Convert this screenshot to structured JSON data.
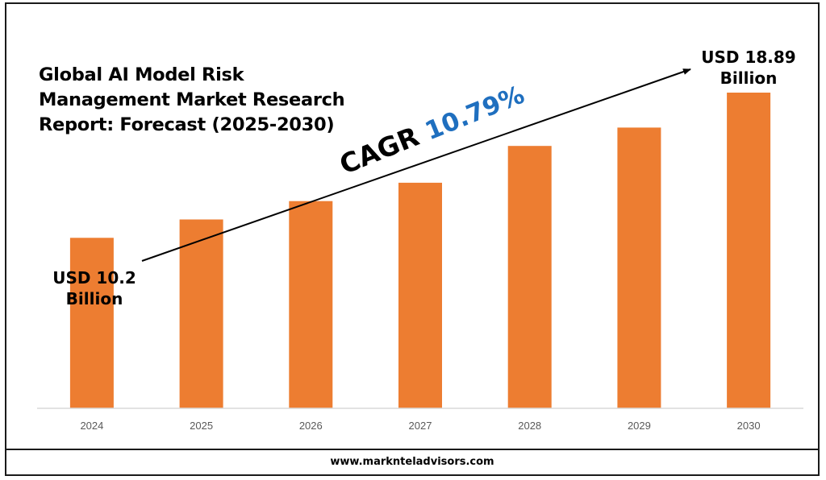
{
  "title_lines": [
    "Global AI Model Risk",
    "Management Market Research",
    "Report: Forecast (2025-2030)"
  ],
  "cagr": {
    "label": "CAGR",
    "value": "10.79%",
    "value_color": "#1f6fbf"
  },
  "callouts": {
    "start": {
      "line1": "USD 10.2",
      "line2": "Billion"
    },
    "end": {
      "line1": "USD 18.89",
      "line2": "Billion"
    }
  },
  "footer": {
    "url": "www.marknteladvisors.com"
  },
  "colors": {
    "bar": "#ed7d31",
    "axis": "#d9d9d9",
    "tick_text": "#595959"
  },
  "chart_data": {
    "type": "bar",
    "categories": [
      "2024",
      "2025",
      "2026",
      "2027",
      "2028",
      "2029",
      "2030"
    ],
    "values": [
      10.2,
      11.3,
      12.4,
      13.5,
      15.7,
      16.8,
      18.89
    ],
    "title": "Global AI Model Risk Management Market Research Report: Forecast (2025-2030)",
    "xlabel": "",
    "ylabel": "",
    "ylim": [
      0,
      18.89
    ],
    "grid": false,
    "legend": "none"
  }
}
